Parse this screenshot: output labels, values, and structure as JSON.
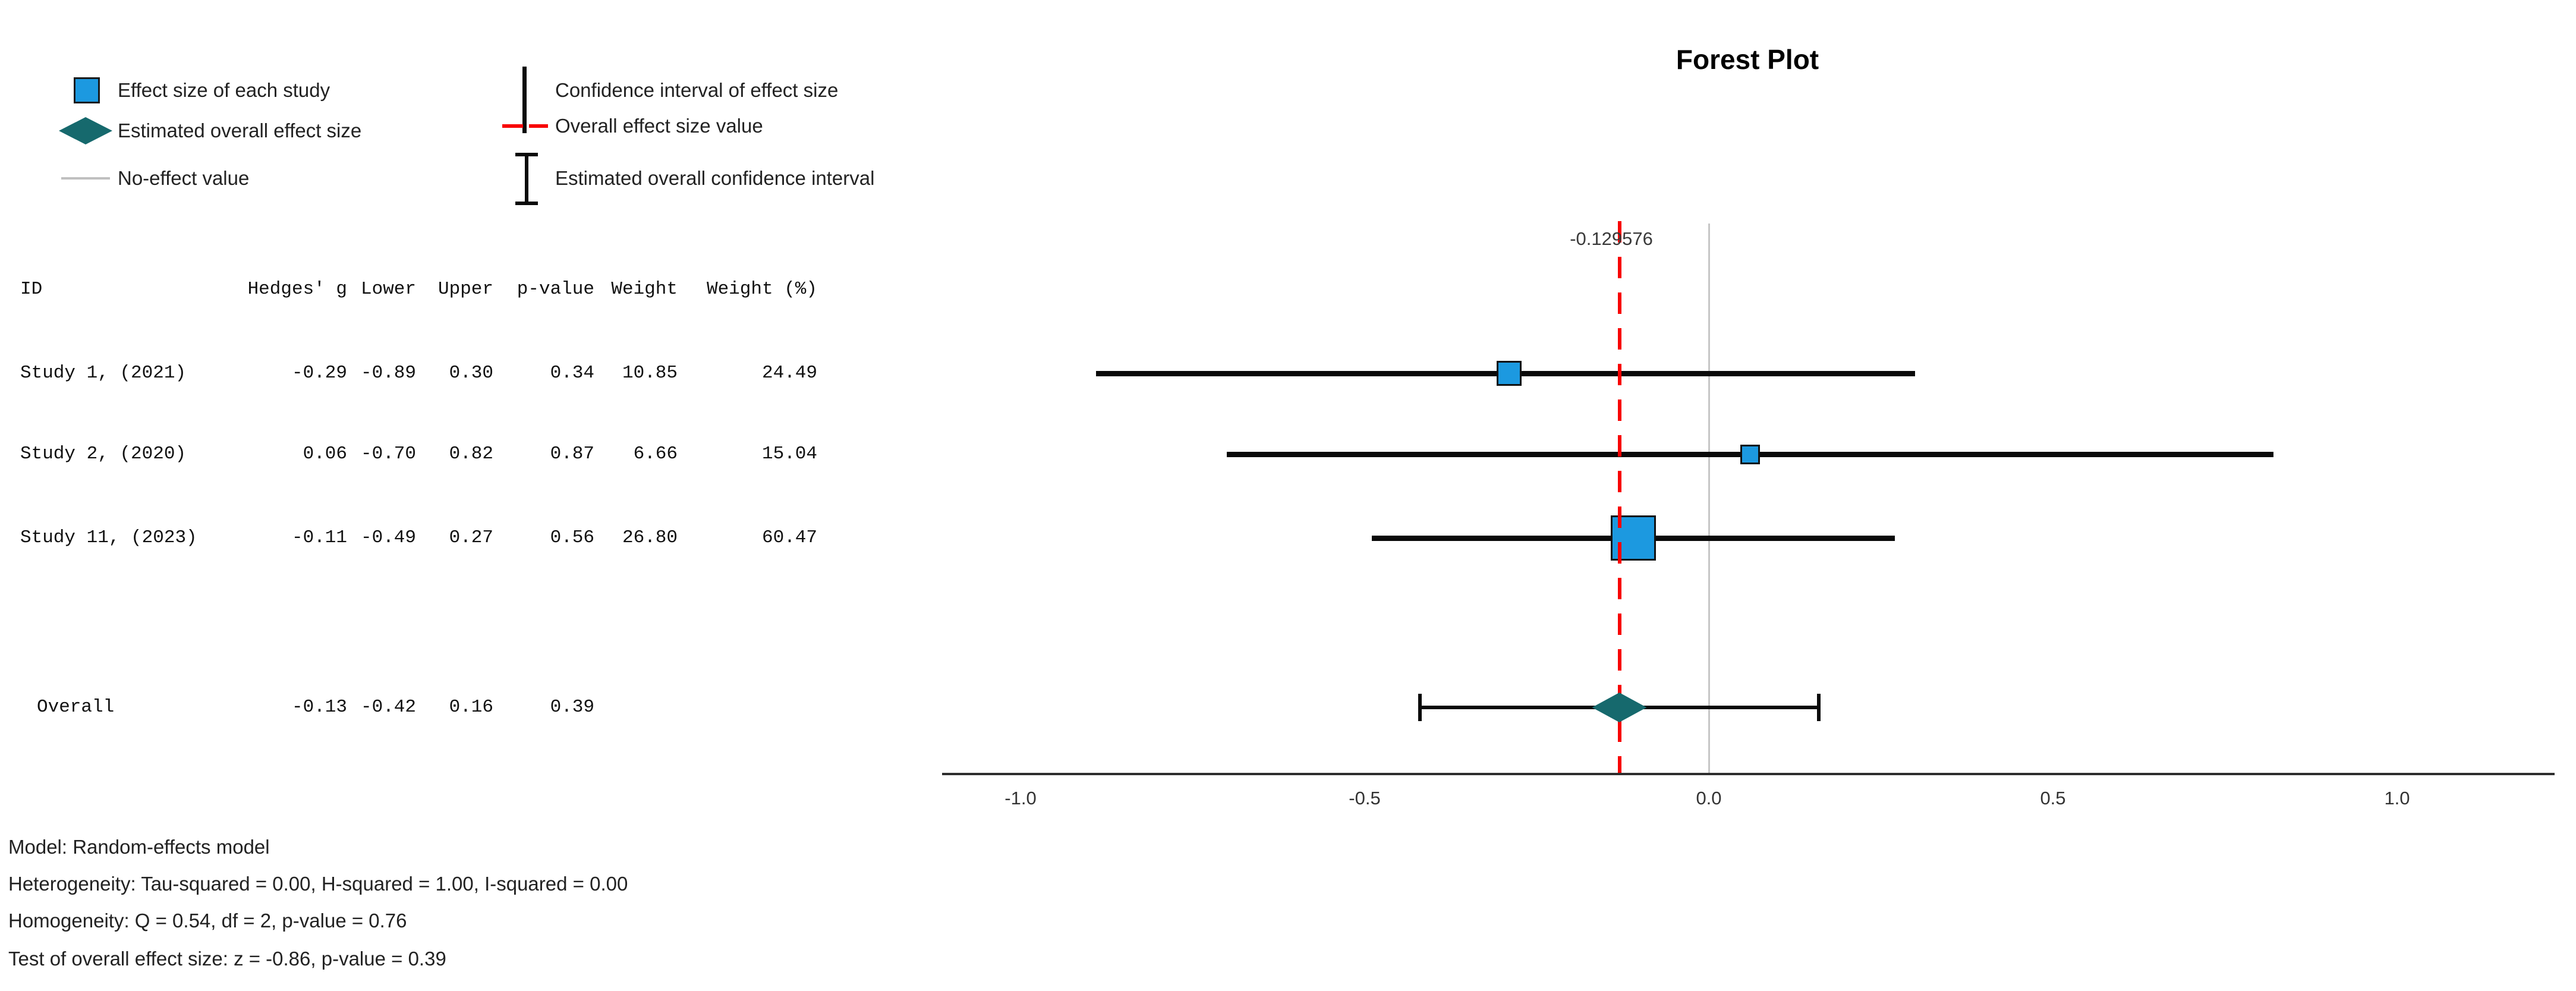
{
  "title": "Forest Plot",
  "colors": {
    "study_marker": "#1c99e0",
    "overall_marker": "#16696d",
    "ci_line": "#0a0a0a",
    "overall_effect_line": "#f80000",
    "no_effect_line": "#c6c6c6",
    "axis": "#2e2e2e",
    "legend_gray_line": "#c0c0c0"
  },
  "legend": {
    "items": [
      {
        "key": "study-effect-size",
        "marker": "blue-square",
        "label": "Effect size of each study"
      },
      {
        "key": "estimated-overall-effect-size",
        "marker": "teal-diamond",
        "label": "Estimated overall effect size"
      },
      {
        "key": "no-effect-value",
        "marker": "gray-line",
        "label": "No-effect value"
      },
      {
        "key": "confidence-interval",
        "marker": "black-vertical-line",
        "label": "Confidence interval of effect size"
      },
      {
        "key": "overall-effect-size-value",
        "marker": "red-dashed-line",
        "label": "Overall effect size value"
      },
      {
        "key": "estimated-overall-ci",
        "marker": "black-ibeam",
        "label": "Estimated overall confidence interval"
      }
    ]
  },
  "table": {
    "headers": [
      "ID",
      "Hedges' g",
      "Lower",
      "Upper",
      "p-value",
      "Weight",
      "Weight (%)"
    ],
    "rows": [
      {
        "id": "Study 1, (2021)",
        "g": "-0.29",
        "lower": "-0.89",
        "upper": "0.30",
        "p": "0.34",
        "weight": "10.85",
        "weight_pct": "24.49",
        "is_overall": false
      },
      {
        "id": "Study 2, (2020)",
        "g": "0.06",
        "lower": "-0.70",
        "upper": "0.82",
        "p": "0.87",
        "weight": "6.66",
        "weight_pct": "15.04",
        "is_overall": false
      },
      {
        "id": "Study 11, (2023)",
        "g": "-0.11",
        "lower": "-0.49",
        "upper": "0.27",
        "p": "0.56",
        "weight": "26.80",
        "weight_pct": "60.47",
        "is_overall": false
      },
      {
        "id": "Overall",
        "g": "-0.13",
        "lower": "-0.42",
        "upper": "0.16",
        "p": "0.39",
        "weight": "",
        "weight_pct": "",
        "is_overall": true
      }
    ]
  },
  "chart_data": {
    "type": "forest",
    "title": "Forest Plot",
    "x_axis": {
      "xlim": [
        -1.11,
        1.23
      ],
      "ticks": [
        {
          "label": "-1.0",
          "value": -1.0
        },
        {
          "label": "-0.5",
          "value": -0.5
        },
        {
          "label": "0.0",
          "value": 0.0
        },
        {
          "label": "0.5",
          "value": 0.5
        },
        {
          "label": "1.0",
          "value": 1.0
        }
      ]
    },
    "no_effect_value": 0.0,
    "overall_effect_value": -0.129576,
    "overall_effect_label": "-0.129576",
    "studies": [
      {
        "id": "Study 1, (2021)",
        "hedges_g": -0.29,
        "lower": -0.89,
        "upper": 0.3,
        "p_value": 0.34,
        "weight": 10.85,
        "weight_pct": 24.49
      },
      {
        "id": "Study 2, (2020)",
        "hedges_g": 0.06,
        "lower": -0.7,
        "upper": 0.82,
        "p_value": 0.87,
        "weight": 6.66,
        "weight_pct": 15.04
      },
      {
        "id": "Study 11, (2023)",
        "hedges_g": -0.11,
        "lower": -0.49,
        "upper": 0.27,
        "p_value": 0.56,
        "weight": 26.8,
        "weight_pct": 60.47
      }
    ],
    "overall": {
      "id": "Overall",
      "hedges_g": -0.13,
      "lower": -0.42,
      "upper": 0.16,
      "p_value": 0.39
    }
  },
  "notes": [
    "Model: Random-effects model",
    "Heterogeneity: Tau-squared = 0.00, H-squared = 1.00, I-squared = 0.00",
    "Homogeneity: Q = 0.54, df = 2, p-value = 0.76",
    "Test of overall effect size: z = -0.86, p-value = 0.39"
  ]
}
